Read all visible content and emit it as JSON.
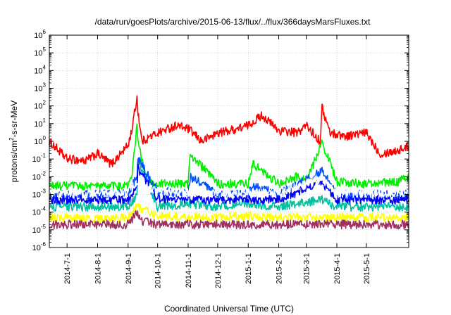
{
  "chart_data": {
    "type": "line",
    "title": "/data/run/goesPlots/archive/2015-06-13/flux/../flux/366daysMarsFluxes.txt",
    "xlabel": "Coordinated Universal Time (UTC)",
    "ylabel": {
      "pre": "protons/cm",
      "sup": "2",
      "post": "-s-sr-MeV"
    },
    "x_range": [
      "2014-06-13",
      "2015-06-13"
    ],
    "x_ticks": [
      "2014-7-1",
      "2014-8-1",
      "2014-9-1",
      "2014-10-1",
      "2014-11-1",
      "2014-12-1",
      "2015-1-1",
      "2015-2-1",
      "2015-3-1",
      "2015-4-1",
      "2015-5-1"
    ],
    "y_scale": "log",
    "y_ticks": [
      {
        "base": "10",
        "exp": "-6"
      },
      {
        "base": "10",
        "exp": "-5"
      },
      {
        "base": "10",
        "exp": "-4"
      },
      {
        "base": "10",
        "exp": "-3"
      },
      {
        "base": "10",
        "exp": "-2"
      },
      {
        "base": "10",
        "exp": "-1"
      },
      {
        "base": "10",
        "exp": "0"
      },
      {
        "base": "10",
        "exp": "1"
      },
      {
        "base": "10",
        "exp": "2"
      },
      {
        "base": "10",
        "exp": "3"
      },
      {
        "base": "10",
        "exp": "4"
      },
      {
        "base": "10",
        "exp": "5"
      },
      {
        "base": "10",
        "exp": "6"
      }
    ],
    "ylim": [
      1e-06,
      1000000.0
    ],
    "grid": true,
    "series": [
      {
        "color": "#ff0000",
        "x": [
          "2014-06-13",
          "2014-07-01",
          "2014-07-20",
          "2014-08-01",
          "2014-08-15",
          "2014-09-01",
          "2014-09-05",
          "2014-09-10",
          "2014-09-11",
          "2014-09-15",
          "2014-10-01",
          "2014-10-20",
          "2014-11-01",
          "2014-11-15",
          "2014-12-01",
          "2014-12-20",
          "2015-01-01",
          "2015-01-15",
          "2015-02-01",
          "2015-02-20",
          "2015-03-01",
          "2015-03-15",
          "2015-03-17",
          "2015-03-25",
          "2015-04-10",
          "2015-05-01",
          "2015-05-15",
          "2015-06-01",
          "2015-06-13"
        ],
        "values": [
          1.0,
          0.1,
          0.08,
          0.2,
          0.05,
          0.6,
          5,
          300,
          50,
          1.0,
          3,
          8,
          5,
          1,
          3,
          5,
          8,
          30,
          4,
          3,
          8,
          1,
          80,
          3,
          2,
          3,
          0.2,
          0.3,
          0.5
        ]
      },
      {
        "color": "#00ee00",
        "x": [
          "2014-06-13",
          "2014-07-01",
          "2014-08-01",
          "2014-09-01",
          "2014-09-05",
          "2014-09-10",
          "2014-09-11",
          "2014-09-20",
          "2014-10-01",
          "2014-11-01",
          "2014-11-03",
          "2014-12-01",
          "2015-01-01",
          "2015-01-06",
          "2015-02-01",
          "2015-02-20",
          "2015-03-01",
          "2015-03-17",
          "2015-04-01",
          "2015-05-01",
          "2015-06-01",
          "2015-06-13"
        ],
        "values": [
          0.003,
          0.003,
          0.003,
          0.003,
          0.01,
          10,
          1,
          0.005,
          0.004,
          0.004,
          0.2,
          0.004,
          0.004,
          0.05,
          0.004,
          0.01,
          0.005,
          1,
          0.005,
          0.004,
          0.005,
          0.01
        ]
      },
      {
        "color": "#00c0a0",
        "x": [
          "2014-06-13",
          "2014-08-01",
          "2014-09-01",
          "2014-09-10",
          "2014-09-11",
          "2014-10-01",
          "2014-11-01",
          "2014-12-01",
          "2015-01-01",
          "2015-02-01",
          "2015-03-17",
          "2015-04-01",
          "2015-05-01",
          "2015-06-13"
        ],
        "values": [
          0.0002,
          0.0002,
          0.0002,
          0.001,
          0.1,
          0.0002,
          0.0003,
          0.0002,
          0.0003,
          0.0002,
          0.0005,
          0.0002,
          0.0002,
          0.0002
        ]
      },
      {
        "color": "#0050ff",
        "x": [
          "2014-06-13",
          "2014-08-01",
          "2014-09-01",
          "2014-09-10",
          "2014-09-11",
          "2014-10-01",
          "2014-11-01",
          "2014-11-03",
          "2014-12-01",
          "2015-01-01",
          "2015-01-06",
          "2015-02-01",
          "2015-03-17",
          "2015-04-01",
          "2015-05-01",
          "2015-06-13"
        ],
        "values": [
          0.001,
          0.001,
          0.0012,
          0.01,
          0.1,
          0.0015,
          0.0012,
          0.01,
          0.001,
          0.001,
          0.003,
          0.001,
          0.02,
          0.001,
          0.001,
          0.001
        ]
      },
      {
        "color": "#0000ff",
        "x": [
          "2014-06-13",
          "2014-08-01",
          "2014-09-01",
          "2014-09-10",
          "2014-09-11",
          "2014-10-01",
          "2014-11-01",
          "2014-12-01",
          "2015-01-01",
          "2015-02-01",
          "2015-03-17",
          "2015-04-01",
          "2015-05-01",
          "2015-06-13"
        ],
        "values": [
          0.0005,
          0.0005,
          0.0005,
          0.003,
          0.03,
          0.0006,
          0.0005,
          0.0005,
          0.0005,
          0.0005,
          0.005,
          0.0005,
          0.0005,
          0.0005
        ]
      },
      {
        "color": "#ffff00",
        "x": [
          "2014-06-13",
          "2014-08-01",
          "2014-09-01",
          "2014-09-10",
          "2014-10-01",
          "2014-11-01",
          "2014-12-01",
          "2015-01-01",
          "2015-02-01",
          "2015-03-01",
          "2015-04-01",
          "2015-05-01",
          "2015-06-13"
        ],
        "values": [
          5e-05,
          4e-05,
          5e-05,
          0.0002,
          6e-05,
          5e-05,
          5e-05,
          6e-05,
          5e-05,
          5e-05,
          5e-05,
          5e-05,
          5e-05
        ]
      },
      {
        "color": "#a03060",
        "x": [
          "2014-06-13",
          "2014-07-01",
          "2014-08-01",
          "2014-09-01",
          "2014-09-10",
          "2014-09-15",
          "2014-10-01",
          "2014-11-01",
          "2014-12-01",
          "2015-01-01",
          "2015-02-01",
          "2015-03-01",
          "2015-04-01",
          "2015-05-01",
          "2015-06-13"
        ],
        "values": [
          2e-05,
          2e-05,
          2e-05,
          2e-05,
          0.0001,
          3e-05,
          2e-05,
          2e-05,
          2e-05,
          2e-05,
          2e-05,
          2e-05,
          2e-05,
          2e-05,
          2e-05
        ]
      },
      {
        "color": "#ffffff",
        "x": [
          "2014-06-13",
          "2014-08-01",
          "2014-09-01",
          "2014-09-10",
          "2014-10-01",
          "2014-11-01",
          "2014-12-01",
          "2015-01-01",
          "2015-02-01",
          "2015-03-17",
          "2015-04-01",
          "2015-05-01",
          "2015-06-13"
        ],
        "values": [
          0.0012,
          0.0012,
          0.0013,
          0.005,
          0.0015,
          0.0013,
          0.0012,
          0.0012,
          0.0012,
          0.008,
          0.0012,
          0.0012,
          0.0012
        ]
      }
    ]
  }
}
